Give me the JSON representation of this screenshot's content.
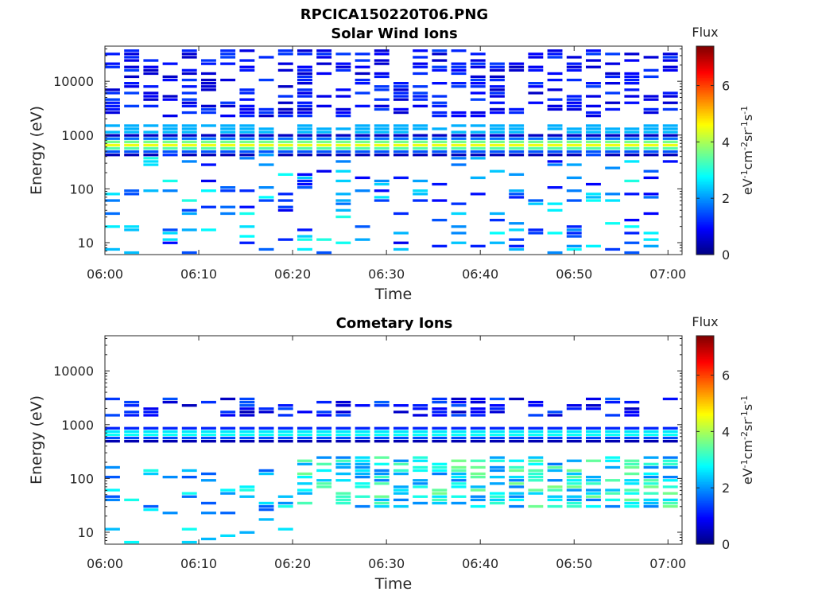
{
  "figure": {
    "title": "RPCICA150220T06.PNG"
  },
  "chart_data": [
    {
      "type": "heatmap",
      "title": "Solar Wind Ions",
      "xlabel": "Time",
      "ylabel": "Energy (eV)",
      "x_ticks": [
        "06:00",
        "06:10",
        "06:20",
        "06:30",
        "06:40",
        "06:50",
        "07:00"
      ],
      "y_ticks": [
        "10",
        "100",
        "1000",
        "10000"
      ],
      "y_scale": "log",
      "ylim": [
        6,
        45000
      ],
      "xlim_minutes": [
        0,
        61.5
      ],
      "colorbar": {
        "title": "Flux",
        "label": "eV-1cm-2sr-1s-1",
        "label_parts": [
          "eV",
          "-1",
          "cm",
          "-2",
          "sr",
          "-1",
          "s",
          "-1"
        ],
        "ticks": [
          "0",
          "2",
          "4",
          "6"
        ],
        "range": [
          0,
          7.4
        ],
        "colormap": "jet"
      },
      "grid": false
    },
    {
      "type": "heatmap",
      "title": "Cometary Ions",
      "xlabel": "Time",
      "ylabel": "Energy (eV)",
      "x_ticks": [
        "06:00",
        "06:10",
        "06:20",
        "06:30",
        "06:40",
        "06:50",
        "07:00"
      ],
      "y_ticks": [
        "10",
        "100",
        "1000",
        "10000"
      ],
      "y_scale": "log",
      "ylim": [
        6,
        45000
      ],
      "xlim_minutes": [
        0,
        61.5
      ],
      "colorbar": {
        "title": "Flux",
        "label": "eV-1cm-2sr-1s-1",
        "label_parts": [
          "eV",
          "-1",
          "cm",
          "-2",
          "sr",
          "-1",
          "s",
          "-1"
        ],
        "ticks": [
          "0",
          "2",
          "4",
          "6"
        ],
        "range": [
          0,
          7.4
        ],
        "colormap": "jet"
      },
      "grid": false
    }
  ]
}
